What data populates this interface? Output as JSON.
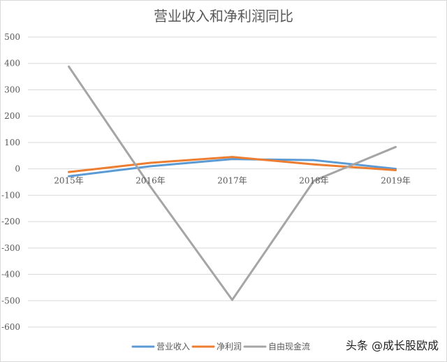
{
  "chart_data": {
    "type": "line",
    "title": "营业收入和净利润同比",
    "categories": [
      "2015年",
      "2016年",
      "2017年",
      "2018年",
      "2019年"
    ],
    "ylim": [
      -600,
      500
    ],
    "yticks": [
      500,
      400,
      300,
      200,
      100,
      0,
      -100,
      -200,
      -300,
      -400,
      -500,
      -600
    ],
    "grid": true,
    "legend_position": "bottom",
    "series": [
      {
        "name": "营业收入",
        "color": "#5b9bd5",
        "values": [
          -28,
          10,
          37,
          33,
          0
        ]
      },
      {
        "name": "净利润",
        "color": "#ed7d31",
        "values": [
          -12,
          23,
          45,
          17,
          -5
        ]
      },
      {
        "name": "自由现金流",
        "color": "#a5a5a5",
        "values": [
          388,
          -68,
          -497,
          -45,
          83
        ]
      }
    ]
  },
  "watermark": "头条 @成长股欧成"
}
